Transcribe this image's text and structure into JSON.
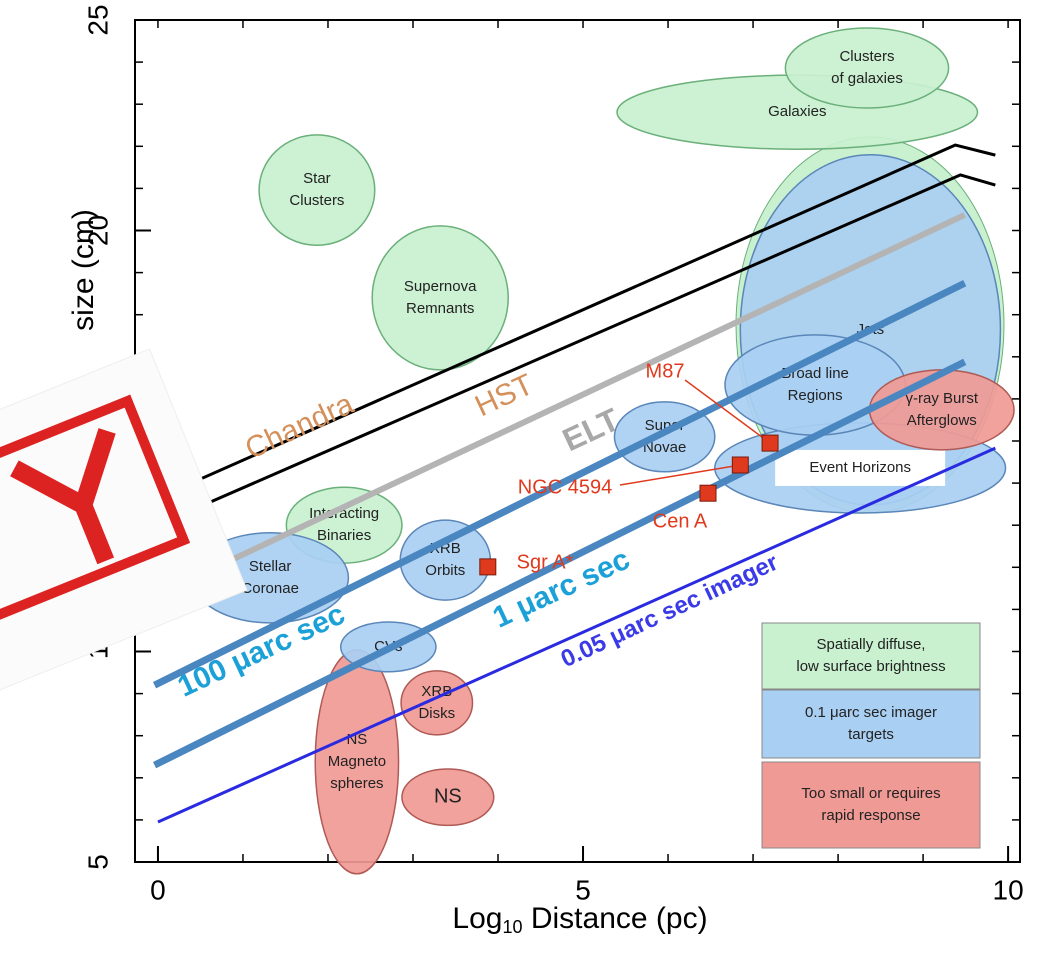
{
  "chart_data": {
    "type": "region",
    "x_label": {
      "text": "Log",
      "sub": "10",
      "rest": " Distance (pc)"
    },
    "y_label": "size (cm)",
    "xlim": [
      -0.27,
      10.14
    ],
    "ylim": [
      5,
      25
    ],
    "xticks": [
      0,
      5,
      10
    ],
    "yticks": [
      5,
      {
        "value": 10,
        "label": "1"
      },
      20,
      25
    ],
    "regions": [
      {
        "label": [
          "Galaxies"
        ],
        "color": "#c9f0cf",
        "x": 7.52,
        "y": 22.81,
        "dx": 2.12,
        "dy": 0.88
      },
      {
        "label": [
          "Clusters",
          "of galaxies"
        ],
        "color": "#c9f0cf",
        "x": 8.34,
        "y": 23.86,
        "dx": 0.96,
        "dy": 0.95
      },
      {
        "label": [
          "Jets"
        ],
        "color": "#a9cff3",
        "x": 8.38,
        "y": 17.64,
        "dx": 1.53,
        "dy": 4.16
      },
      {
        "label": [
          "Star",
          "Clusters"
        ],
        "color": "#c9f0cf",
        "x": 1.87,
        "y": 20.96,
        "dx": 0.68,
        "dy": 1.31
      },
      {
        "label": [
          "Supernova",
          "Remnants"
        ],
        "color": "#c9f0cf",
        "x": 3.32,
        "y": 18.4,
        "dx": 0.8,
        "dy": 1.71
      },
      {
        "label": [
          "Event Horizons"
        ],
        "color": "#a9cff3",
        "x": 8.26,
        "y": 14.36,
        "dx": 1.71,
        "dy": 1.07
      },
      {
        "label": [
          "Broad line",
          "Regions"
        ],
        "color": "#a9cff3",
        "x": 7.73,
        "y": 16.33,
        "dx": 1.06,
        "dy": 1.19
      },
      {
        "label": [
          "γ-ray Burst",
          "Afterglows"
        ],
        "color": "#f09a95",
        "x": 9.22,
        "y": 15.74,
        "dx": 0.85,
        "dy": 0.95
      },
      {
        "label": [
          "Super",
          "Novae"
        ],
        "color": "#a9cff3",
        "x": 5.96,
        "y": 15.1,
        "dx": 0.59,
        "dy": 0.83
      },
      {
        "label": [
          "Interacting",
          "Binaries"
        ],
        "color": "#c9f0cf",
        "x": 2.19,
        "y": 13.0,
        "dx": 0.68,
        "dy": 0.9
      },
      {
        "label": [
          "Stellar",
          "Coronae"
        ],
        "color": "#a9cff3",
        "x": 1.32,
        "y": 11.75,
        "dx": 0.92,
        "dy": 1.07
      },
      {
        "label": [
          "XRB",
          "Orbits"
        ],
        "color": "#a9cff3",
        "x": 3.38,
        "y": 12.17,
        "dx": 0.53,
        "dy": 0.95
      },
      {
        "label": [
          "NS",
          "Magneto",
          "spheres"
        ],
        "color": "#f09a95",
        "x": 2.34,
        "y": 7.38,
        "dx": 0.49,
        "dy": 2.66
      },
      {
        "label": [
          "CVs"
        ],
        "color": "#a9cff3",
        "x": 2.71,
        "y": 10.11,
        "dx": 0.56,
        "dy": 0.59
      },
      {
        "label": [
          "XRB",
          "Disks"
        ],
        "color": "#f09a95",
        "x": 3.28,
        "y": 8.78,
        "dx": 0.42,
        "dy": 0.76
      },
      {
        "label": [
          "NS"
        ],
        "color": "#f09a95",
        "x": 3.41,
        "y": 6.54,
        "dx": 0.54,
        "dy": 0.67
      }
    ],
    "series": [
      {
        "name": "Chandra",
        "color": "#000000",
        "label_color": "#d4905a",
        "curves": [
          {
            "x": [
              -0.27,
              9.38,
              9.85
            ],
            "y": [
              13.41,
              22.03,
              21.79
            ]
          },
          {
            "x": [
              -0.27,
              9.44,
              9.85
            ],
            "y": [
              12.77,
              21.32,
              21.08
            ]
          }
        ]
      },
      {
        "name": "HST",
        "color": "#000000",
        "label_color": "#d4905a",
        "curves": []
      },
      {
        "name": "ELT",
        "color": "#b4b4b4",
        "label_color": "#a8a8a8",
        "curves": [
          {
            "x": [
              0.49,
              9.49
            ],
            "y": [
              11.82,
              20.37
            ]
          }
        ]
      },
      {
        "name": "100 μarc sec",
        "color": "#4a86c0",
        "label_color": "#1ba0d8",
        "curves": [
          {
            "x": [
              -0.04,
              9.49
            ],
            "y": [
              9.2,
              18.75
            ]
          }
        ]
      },
      {
        "name": "1 μarc sec",
        "color": "#4a86c0",
        "label_color": "#1ba0d8",
        "curves": [
          {
            "x": [
              -0.04,
              9.49
            ],
            "y": [
              7.3,
              16.88
            ]
          }
        ]
      },
      {
        "name": "0.05 μarc sec imager",
        "color": "#2a2ae0",
        "label_color": "#3a3ae8",
        "curves": [
          {
            "x": [
              0.0,
              9.85
            ],
            "y": [
              5.95,
              14.83
            ]
          }
        ]
      }
    ],
    "points": {
      "color": "#e03a1e",
      "names": [
        "Sgr A*",
        "Cen A",
        "NGC 4594",
        "M87"
      ],
      "x": [
        3.88,
        6.47,
        6.85,
        7.2
      ],
      "y": [
        12.01,
        13.76,
        14.43,
        14.95
      ]
    },
    "legend": [
      {
        "label": [
          "Spatially diffuse,",
          "low surface brightness"
        ],
        "color": "#c9f0cf"
      },
      {
        "label": [
          "0.1 μarc sec imager",
          "targets"
        ],
        "color": "#a9cff3"
      },
      {
        "label": [
          "Too small or requires",
          "rapid response"
        ],
        "color": "#f09a95"
      }
    ]
  }
}
